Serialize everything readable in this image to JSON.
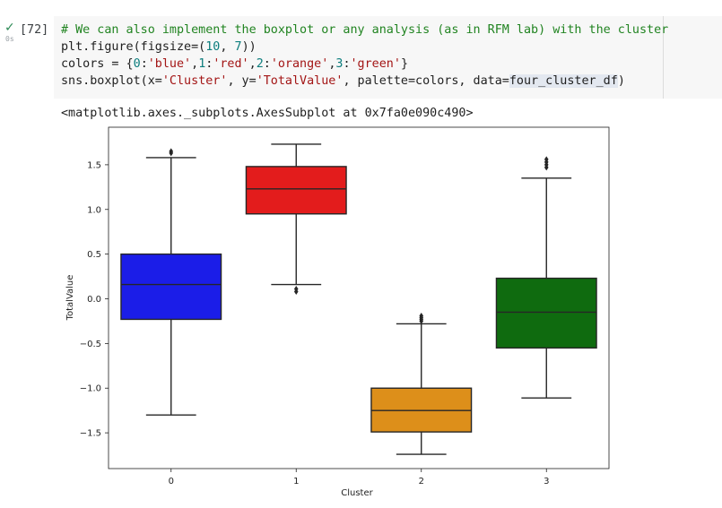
{
  "cell": {
    "status_icon": "checkmark-icon",
    "run_time": "0s",
    "execution_count": "[72]",
    "code": {
      "line1": "# We can also implement the boxplot or any analysis (as in RFM lab) with the cluster",
      "line2": {
        "a": "plt.figure(figsize=(",
        "b": "10",
        "c": ", ",
        "d": "7",
        "e": "))"
      },
      "line3": {
        "a": "colors = {",
        "b": "0",
        "c": ":",
        "d": "'blue'",
        "e": ",",
        "f": "1",
        "g": ":",
        "h": "'red'",
        "i": ",",
        "j": "2",
        "k": ":",
        "l": "'orange'",
        "m": ",",
        "n": "3",
        "o": ":",
        "p": "'green'",
        "q": "}"
      },
      "line4": {
        "a": "sns.boxplot(x=",
        "b": "'Cluster'",
        "c": ", y=",
        "d": "'TotalValue'",
        "e": ", palette=colors, data=",
        "f": "four_cluster_df",
        "g": ")"
      }
    }
  },
  "output": {
    "text": "<matplotlib.axes._subplots.AxesSubplot at 0x7fa0e090c490>"
  },
  "chart_data": {
    "type": "boxplot",
    "xlabel": "Cluster",
    "ylabel": "TotalValue",
    "ylim": [
      -1.9,
      1.92
    ],
    "yticks": [
      1.5,
      1.0,
      0.5,
      0.0,
      -0.5,
      -1.0,
      -1.5
    ],
    "ytick_labels": [
      "1.5",
      "1.0",
      "0.5",
      "0.0",
      "−0.5",
      "−1.0",
      "−1.5"
    ],
    "grid": false,
    "categories": [
      "0",
      "1",
      "2",
      "3"
    ],
    "boxes": [
      {
        "category": "0",
        "color": "#1b1de8",
        "whisker_low": -1.3,
        "q1": -0.23,
        "median": 0.16,
        "q3": 0.5,
        "whisker_high": 1.58,
        "outliers": [
          1.63,
          1.65
        ]
      },
      {
        "category": "1",
        "color": "#e31c1c",
        "whisker_low": 0.16,
        "q1": 0.95,
        "median": 1.23,
        "q3": 1.48,
        "whisker_high": 1.73,
        "outliers": [
          0.08,
          0.11
        ]
      },
      {
        "category": "2",
        "color": "#dd8f1a",
        "whisker_low": -1.74,
        "q1": -1.49,
        "median": -1.25,
        "q3": -1.0,
        "whisker_high": -0.28,
        "outliers": [
          -0.19,
          -0.21,
          -0.23,
          -0.25
        ]
      },
      {
        "category": "3",
        "color": "#0f6b0f",
        "whisker_low": -1.11,
        "q1": -0.55,
        "median": -0.15,
        "q3": 0.23,
        "whisker_high": 1.35,
        "outliers": [
          1.47,
          1.5,
          1.53,
          1.56
        ]
      }
    ]
  }
}
